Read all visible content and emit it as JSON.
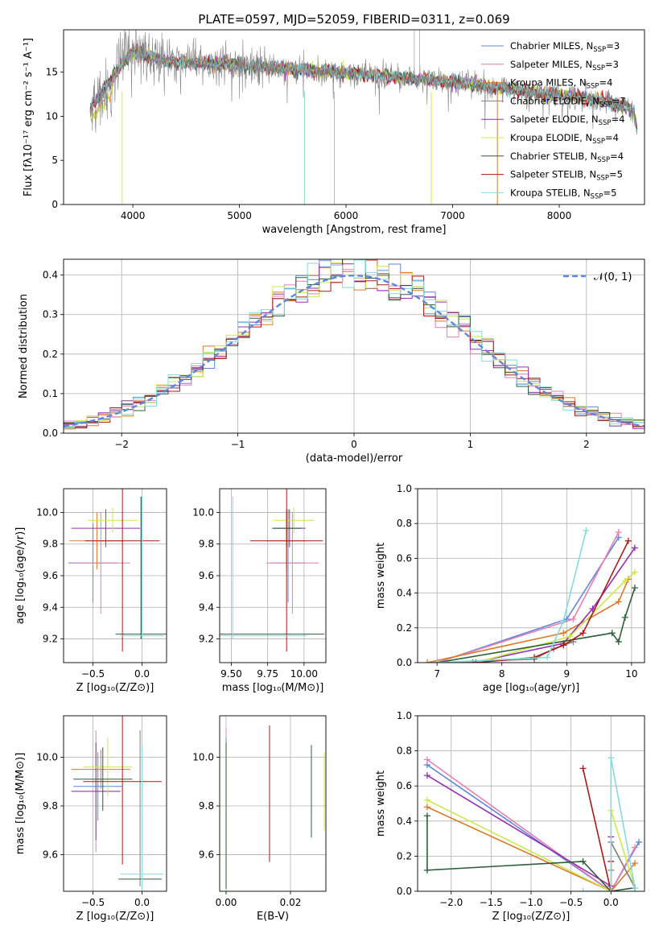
{
  "page": {
    "title": "PLATE=0597, MJD=52059, FIBERID=0311, z=0.069"
  },
  "colors": {
    "Chabrier MILES": "#5f86d9",
    "Salpeter MILES": "#e67fb3",
    "Kroupa MILES": "#d97a2b",
    "Chabrier ELODIE": "#7f7f7f",
    "Salpeter ELODIE": "#9030b0",
    "Kroupa ELODIE": "#cde84d",
    "Chabrier STELIB": "#2e5e3a",
    "Salpeter STELIB": "#aa1a1a",
    "Kroupa STELIB": "#86dada",
    "gaussian": "#5f86d9"
  },
  "chart_data": [
    {
      "id": "spectrum",
      "type": "line",
      "title": "PLATE=0597, MJD=52059, FIBERID=0311, z=0.069",
      "xlabel": "wavelength [Angstrom, rest frame]",
      "ylabel": "Flux [fλ10⁻¹⁷ erg cm⁻² s⁻¹ A⁻¹]",
      "xlim": [
        3350,
        8800
      ],
      "ylim": [
        0,
        19.8
      ],
      "xticks": [
        4000,
        5000,
        6000,
        7000,
        8000
      ],
      "yticks": [
        0,
        5,
        10,
        15
      ],
      "grid": false,
      "legend_position": "upper-right",
      "continuum": {
        "x": [
          3600,
          3700,
          3800,
          3900,
          4000,
          4100,
          4200,
          4300,
          4500,
          4700,
          5000,
          5300,
          5600,
          6000,
          6400,
          6800,
          7200,
          7500,
          7800,
          8000,
          8200,
          8400,
          8500,
          8600,
          8700,
          8730
        ],
        "y": [
          11.0,
          12.5,
          14.2,
          16.0,
          17.2,
          17.0,
          16.6,
          16.3,
          16.1,
          16.0,
          15.8,
          15.5,
          15.3,
          14.9,
          14.5,
          14.1,
          13.6,
          13.1,
          12.7,
          12.4,
          12.1,
          11.8,
          11.5,
          11.2,
          10.5,
          8.5
        ]
      },
      "series": [
        {
          "name": "Chabrier MILES",
          "nssp": "3"
        },
        {
          "name": "Salpeter MILES",
          "nssp": "3"
        },
        {
          "name": "Kroupa MILES",
          "nssp": "4"
        },
        {
          "name": "Chabrier ELODIE",
          "nssp": "7"
        },
        {
          "name": "Salpeter ELODIE",
          "nssp": "4"
        },
        {
          "name": "Kroupa ELODIE",
          "nssp": "4"
        },
        {
          "name": "Chabrier STELIB",
          "nssp": "4"
        },
        {
          "name": "Salpeter STELIB",
          "nssp": "5"
        },
        {
          "name": "Kroupa STELIB",
          "nssp": "5"
        }
      ],
      "legend_prefix_sub": "N",
      "legend_sub": "SSP"
    },
    {
      "id": "residuals",
      "type": "line",
      "xlabel": "(data-model)/error",
      "ylabel": "Normed distribution",
      "xlim": [
        -2.5,
        2.5
      ],
      "ylim": [
        0,
        0.44
      ],
      "xticks": [
        -2,
        -1,
        0,
        1,
        2
      ],
      "yticks": [
        0.0,
        0.1,
        0.2,
        0.3,
        0.4
      ],
      "grid": true,
      "legend_position": "upper-right",
      "gaussian_label": "𝒩(0, 1)",
      "bin_width": 0.1,
      "series_order": [
        "Chabrier MILES",
        "Salpeter MILES",
        "Kroupa MILES",
        "Salpeter ELODIE",
        "Kroupa ELODIE",
        "Chabrier STELIB",
        "Salpeter STELIB",
        "Kroupa STELIB"
      ]
    },
    {
      "id": "age-vs-Z",
      "type": "scatter",
      "xlabel": "Z [log₁₀(Z/Z⊙)]",
      "ylabel": "age  [log₁₀(age/yr)]",
      "xlim": [
        -0.8,
        0.25
      ],
      "ylim": [
        9.05,
        10.15
      ],
      "xticks": [
        -0.5,
        0.0
      ],
      "yticks": [
        9.2,
        9.4,
        9.6,
        9.8,
        10.0
      ],
      "grid": true,
      "points": [
        {
          "series": "Chabrier MILES",
          "x": -0.5,
          "xerr": 0.25,
          "y": 9.68,
          "yerr": 0.25
        },
        {
          "series": "Salpeter MILES",
          "x": -0.42,
          "xerr": 0.3,
          "y": 9.68,
          "yerr": 0.32
        },
        {
          "series": "Kroupa MILES",
          "x": -0.46,
          "xerr": 0.28,
          "y": 9.82,
          "yerr": 0.18
        },
        {
          "series": "Chabrier ELODIE",
          "x": -0.01,
          "xerr": 0.0,
          "y": 9.65,
          "yerr": 0.45
        },
        {
          "series": "Salpeter ELODIE",
          "x": -0.37,
          "xerr": 0.35,
          "y": 9.9,
          "yerr": 0.12
        },
        {
          "series": "Kroupa ELODIE",
          "x": -0.3,
          "xerr": 0.25,
          "y": 9.95,
          "yerr": 0.08
        },
        {
          "series": "Chabrier STELIB",
          "x": -0.01,
          "xerr": 0.26,
          "y": 9.23,
          "yerr": 0.0
        },
        {
          "series": "Chabrier STELIB",
          "x": -0.01,
          "xerr": 0.0,
          "y": 9.65,
          "yerr": 0.45
        },
        {
          "series": "Salpeter STELIB",
          "x": -0.2,
          "xerr": 0.38,
          "y": 9.82,
          "yerr": 0.7
        },
        {
          "series": "Kroupa STELIB",
          "x": 0.0,
          "xerr": 0.22,
          "y": 9.22,
          "yerr": 0.0
        },
        {
          "series": "Kroupa STELIB",
          "x": 0.0,
          "xerr": 0.0,
          "y": 9.65,
          "yerr": 0.45
        }
      ]
    },
    {
      "id": "age-vs-mass",
      "type": "scatter",
      "xlabel": "mass [log₁₀(M/M⊙)]",
      "ylabel": "",
      "xlim": [
        9.42,
        10.15
      ],
      "ylim": [
        9.05,
        10.15
      ],
      "xticks": [
        9.5,
        9.75,
        10.0
      ],
      "yticks": [
        9.2,
        9.4,
        9.6,
        9.8,
        10.0
      ],
      "grid": true,
      "points": [
        {
          "series": "Chabrier MILES",
          "x": 9.89,
          "xerr": 0.12,
          "y": 9.68,
          "yerr": 0.25
        },
        {
          "series": "Salpeter MILES",
          "x": 9.92,
          "xerr": 0.18,
          "y": 9.68,
          "yerr": 0.32
        },
        {
          "series": "Kroupa MILES",
          "x": 9.88,
          "xerr": 0.14,
          "y": 9.82,
          "yerr": 0.18
        },
        {
          "series": "Chabrier ELODIE",
          "x": 9.89,
          "xerr": 0.1,
          "y": 9.9,
          "yerr": 0.12
        },
        {
          "series": "Salpeter ELODIE",
          "x": 9.9,
          "xerr": 0.11,
          "y": 9.9,
          "yerr": 0.12
        },
        {
          "series": "Kroupa ELODIE",
          "x": 9.93,
          "xerr": 0.14,
          "y": 9.95,
          "yerr": 0.08
        },
        {
          "series": "Chabrier STELIB",
          "x": 9.52,
          "xerr": 0.62,
          "y": 9.23,
          "yerr": 0.0
        },
        {
          "series": "Chabrier STELIB",
          "x": 9.88,
          "xerr": 0.1,
          "y": 9.9,
          "yerr": 0.12
        },
        {
          "series": "Salpeter STELIB",
          "x": 9.88,
          "xerr": 0.25,
          "y": 9.82,
          "yerr": 0.7
        },
        {
          "series": "Kroupa STELIB",
          "x": 9.51,
          "xerr": 0.0,
          "y": 9.65,
          "yerr": 0.45
        },
        {
          "series": "Kroupa STELIB",
          "x": 9.52,
          "xerr": 0.5,
          "y": 9.22,
          "yerr": 0.0
        }
      ]
    },
    {
      "id": "weight-vs-age",
      "type": "line",
      "xlabel": "age  [log₁₀(age/yr)]",
      "ylabel": "mass weight",
      "xlim": [
        6.7,
        10.2
      ],
      "ylim": [
        0,
        1.0
      ],
      "xticks": [
        7,
        8,
        9,
        10
      ],
      "yticks": [
        0.0,
        0.2,
        0.4,
        0.6,
        0.8,
        1.0
      ],
      "grid": true,
      "series": [
        {
          "name": "Chabrier MILES",
          "x": [
            7.0,
            9.0,
            9.8
          ],
          "y": [
            0.0,
            0.25,
            0.72
          ]
        },
        {
          "name": "Salpeter MILES",
          "x": [
            7.0,
            9.1,
            9.8
          ],
          "y": [
            0.0,
            0.25,
            0.75
          ]
        },
        {
          "name": "Kroupa MILES",
          "x": [
            6.85,
            8.95,
            9.8,
            9.95
          ],
          "y": [
            0.0,
            0.17,
            0.35,
            0.48
          ]
        },
        {
          "name": "Chabrier ELODIE",
          "x": [
            7.0,
            8.5,
            8.8,
            9.1
          ],
          "y": [
            0.0,
            0.02,
            0.08,
            0.12
          ]
        },
        {
          "name": "Salpeter ELODIE",
          "x": [
            7.55,
            8.95,
            9.4,
            10.05
          ],
          "y": [
            0.0,
            0.11,
            0.31,
            0.66
          ]
        },
        {
          "name": "Kroupa ELODIE",
          "x": [
            7.6,
            9.05,
            9.9,
            10.05
          ],
          "y": [
            0.0,
            0.15,
            0.47,
            0.52
          ]
        },
        {
          "name": "Chabrier STELIB",
          "x": [
            7.0,
            9.7,
            9.8,
            9.9,
            10.05
          ],
          "y": [
            0.0,
            0.17,
            0.12,
            0.26,
            0.43
          ]
        },
        {
          "name": "Salpeter STELIB",
          "x": [
            7.6,
            8.5,
            8.95,
            9.25,
            9.95
          ],
          "y": [
            0.0,
            0.03,
            0.1,
            0.17,
            0.7
          ]
        },
        {
          "name": "Kroupa STELIB",
          "x": [
            7.0,
            8.7,
            8.95,
            9.3
          ],
          "y": [
            0.0,
            0.03,
            0.24,
            0.76
          ]
        }
      ]
    },
    {
      "id": "mass-vs-Z",
      "type": "scatter",
      "xlabel": "Z [log₁₀(Z/Z⊙)]",
      "ylabel": "mass [log₁₀(M/M⊙)]",
      "xlim": [
        -0.8,
        0.25
      ],
      "ylim": [
        9.45,
        10.17
      ],
      "xticks": [
        -0.5,
        0.0
      ],
      "yticks": [
        9.6,
        9.8,
        10.0
      ],
      "grid": true,
      "points": [
        {
          "series": "Chabrier MILES",
          "x": -0.45,
          "xerr": 0.25,
          "y": 9.88,
          "yerr": 0.14
        },
        {
          "series": "Salpeter MILES",
          "x": -0.47,
          "xerr": 0.25,
          "y": 9.86,
          "yerr": 0.25
        },
        {
          "series": "Kroupa MILES",
          "x": -0.42,
          "xerr": 0.3,
          "y": 9.95,
          "yerr": 0.08
        },
        {
          "series": "Chabrier ELODIE",
          "x": -0.02,
          "xerr": 0.0,
          "y": 9.79,
          "yerr": 0.32
        },
        {
          "series": "Salpeter ELODIE",
          "x": -0.47,
          "xerr": 0.25,
          "y": 9.86,
          "yerr": 0.2
        },
        {
          "series": "Kroupa ELODIE",
          "x": -0.35,
          "xerr": 0.25,
          "y": 9.96,
          "yerr": 0.12
        },
        {
          "series": "Chabrier STELIB",
          "x": -0.4,
          "xerr": 0.3,
          "y": 9.91,
          "yerr": 0.13
        },
        {
          "series": "Chabrier STELIB",
          "x": -0.02,
          "xerr": 0.22,
          "y": 9.5,
          "yerr": 0.0
        },
        {
          "series": "Salpeter STELIB",
          "x": -0.2,
          "xerr": 0.4,
          "y": 9.9,
          "yerr": 0.34
        },
        {
          "series": "Kroupa STELIB",
          "x": 0.0,
          "xerr": 0.22,
          "y": 9.52,
          "yerr": 0.0
        },
        {
          "series": "Kroupa STELIB",
          "x": 0.0,
          "xerr": 0.0,
          "y": 9.75,
          "yerr": 0.3
        }
      ]
    },
    {
      "id": "mass-vs-ebv",
      "type": "scatter",
      "xlabel": "E(B-V)",
      "ylabel": "",
      "xlim": [
        -0.002,
        0.031
      ],
      "ylim": [
        9.45,
        10.17
      ],
      "xticks": [
        0.0,
        0.02
      ],
      "yticks": [
        9.6,
        9.8,
        10.0
      ],
      "grid": true,
      "points": [
        {
          "series": "Salpeter MILES",
          "x": 0.0,
          "xerr": 0.0,
          "y": 9.8,
          "yerr": 0.32
        },
        {
          "series": "Chabrier MILES",
          "x": 0.0,
          "xerr": 0.0,
          "y": 9.78,
          "yerr": 0.3
        },
        {
          "series": "Kroupa STELIB",
          "x": 0.0,
          "xerr": 0.0,
          "y": 9.75,
          "yerr": 0.3
        },
        {
          "series": "Chabrier STELIB",
          "x": 0.0,
          "xerr": 0.0,
          "y": 9.76,
          "yerr": 0.3
        },
        {
          "series": "Salpeter STELIB",
          "x": 0.0135,
          "xerr": 0.0,
          "y": 9.85,
          "yerr": 0.28
        },
        {
          "series": "Chabrier STELIB",
          "x": 0.0265,
          "xerr": 0.0,
          "y": 9.86,
          "yerr": 0.19
        },
        {
          "series": "Kroupa ELODIE",
          "x": 0.0305,
          "xerr": 0.0,
          "y": 9.86,
          "yerr": 0.16
        }
      ]
    },
    {
      "id": "weight-vs-Z",
      "type": "line",
      "xlabel": "Z [log₁₀(Z/Z⊙)]",
      "ylabel": "mass weight",
      "xlim": [
        -2.42,
        0.42
      ],
      "ylim": [
        0,
        1.0
      ],
      "xticks": [
        -2.0,
        -1.5,
        -1.0,
        -0.5,
        0.0
      ],
      "yticks": [
        0.0,
        0.2,
        0.4,
        0.6,
        0.8,
        1.0
      ],
      "grid": true,
      "series": [
        {
          "name": "Chabrier MILES",
          "x": [
            -2.3,
            0.0,
            0.35
          ],
          "y": [
            0.72,
            0.0,
            0.28
          ]
        },
        {
          "name": "Salpeter MILES",
          "x": [
            -2.3,
            0.0,
            0.3
          ],
          "y": [
            0.75,
            0.0,
            0.25
          ]
        },
        {
          "name": "Kroupa MILES",
          "x": [
            -2.3,
            0.0,
            0.3
          ],
          "y": [
            0.48,
            0.0,
            0.16
          ]
        },
        {
          "name": "Chabrier ELODIE",
          "x": [
            0.0,
            0.0,
            0.3
          ],
          "y": [
            0.12,
            0.28,
            0.02
          ]
        },
        {
          "name": "Salpeter ELODIE",
          "x": [
            -2.3,
            0.0,
            0.0
          ],
          "y": [
            0.66,
            0.03,
            0.31
          ]
        },
        {
          "name": "Kroupa ELODIE",
          "x": [
            -2.3,
            0.0,
            0.0,
            0.3
          ],
          "y": [
            0.52,
            0.0,
            0.46,
            0.02
          ]
        },
        {
          "name": "Chabrier STELIB",
          "x": [
            -2.3,
            -2.3,
            -0.35,
            0.0,
            0.3
          ],
          "y": [
            0.43,
            0.12,
            0.17,
            0.0,
            0.02
          ]
        },
        {
          "name": "Salpeter STELIB",
          "x": [
            -0.35,
            0.0,
            0.0
          ],
          "y": [
            0.7,
            0.0,
            0.17
          ]
        },
        {
          "name": "Kroupa STELIB",
          "x": [
            -0.35,
            0.0,
            0.0,
            0.3
          ],
          "y": [
            0.0,
            0.0,
            0.76,
            0.02
          ]
        }
      ]
    }
  ]
}
